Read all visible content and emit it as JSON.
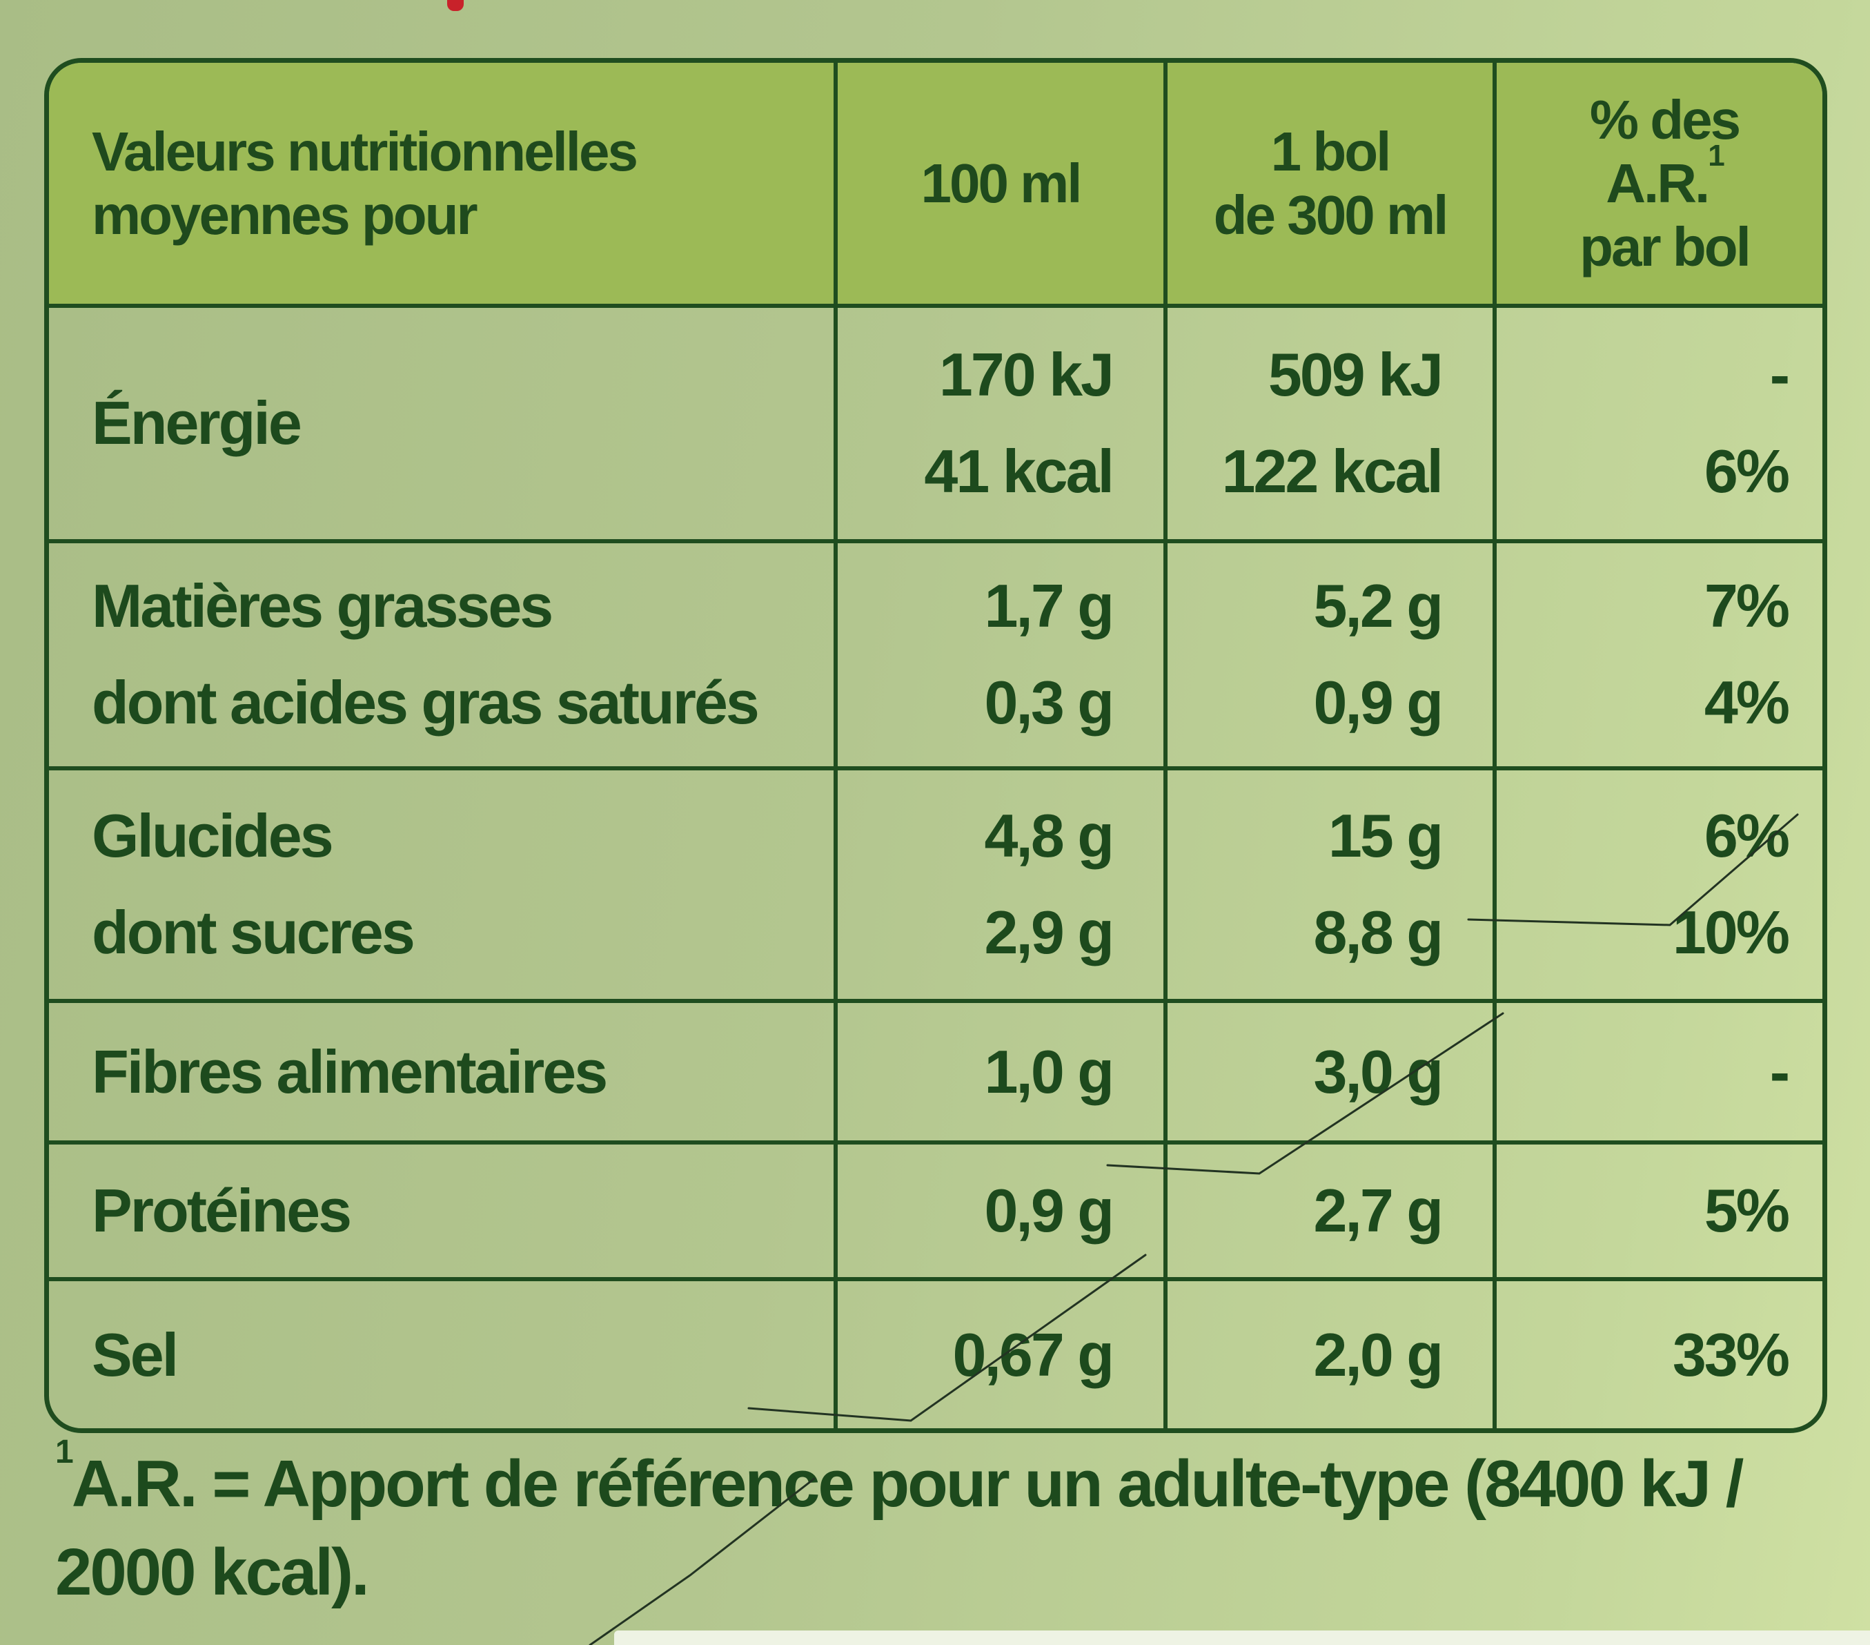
{
  "table": {
    "header": {
      "label_line1": "Valeurs nutritionnelles",
      "label_line2": "moyennes pour",
      "col_100ml": "100 ml",
      "col_bol_line1": "1 bol",
      "col_bol_line2": "de 300 ml",
      "col_ar_line1": "% des",
      "col_ar_line2": "A.R.",
      "col_ar_ref": "1",
      "col_ar_line3": "par bol"
    },
    "rows": [
      {
        "name": "Énergie",
        "per100_line1": "170 kJ",
        "per100_line2": "41 kcal",
        "perbol_line1": "509 kJ",
        "perbol_line2": "122 kcal",
        "ar_line1": "-",
        "ar_line2": "6%"
      },
      {
        "name_line1": "Matières grasses",
        "name_line2": "dont acides gras saturés",
        "per100_line1": "1,7 g",
        "per100_line2": "0,3 g",
        "perbol_line1": "5,2 g",
        "perbol_line2": "0,9 g",
        "ar_line1": "7%",
        "ar_line2": "4%"
      },
      {
        "name_line1": "Glucides",
        "name_line2": "dont sucres",
        "per100_line1": "4,8 g",
        "per100_line2": "2,9 g",
        "perbol_line1": "15 g",
        "perbol_line2": "8,8 g",
        "ar_line1": "6%",
        "ar_line2": "10%"
      },
      {
        "name": "Fibres alimentaires",
        "per100": "1,0 g",
        "perbol": "3,0 g",
        "ar": "-"
      },
      {
        "name": "Protéines",
        "per100": "0,9 g",
        "perbol": "2,7 g",
        "ar": "5%"
      },
      {
        "name": "Sel",
        "per100": "0,67 g",
        "perbol": "2,0 g",
        "ar": "33%"
      }
    ]
  },
  "footnote": {
    "ref": "1",
    "text": "A.R. = Apport de référence pour un adulte-type (8400 kJ / 2000 kcal)."
  },
  "colors": {
    "background": "#b3c68f",
    "header_fill": "#9cba56",
    "border": "#1f4d1f",
    "text": "#1d4a1d",
    "accent_red": "#c8222a"
  }
}
